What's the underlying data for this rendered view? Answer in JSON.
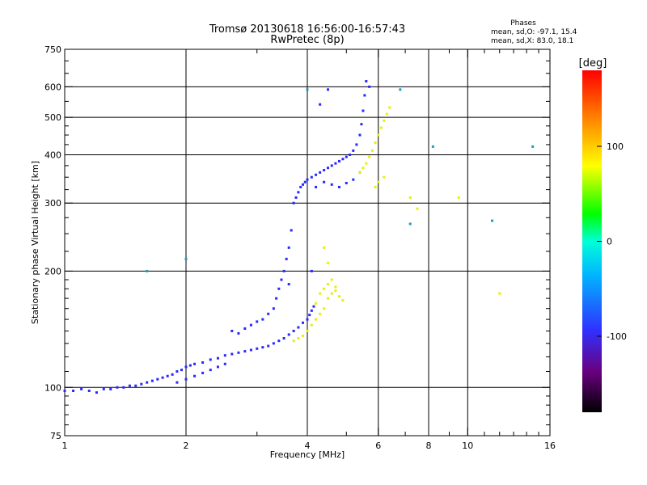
{
  "chart_data": {
    "type": "scatter",
    "title": "Tromsø 20130618 16:56:00-16:57:43",
    "subtitle": "RwPretec (8p)",
    "xlabel": "Frequency [MHz]",
    "ylabel": "Stationary phase Virtual Height [km]",
    "xscale": "log",
    "yscale": "log",
    "xlim": [
      1,
      16
    ],
    "ylim": [
      75,
      750
    ],
    "x_ticks": [
      1,
      2,
      4,
      6,
      8,
      10,
      16
    ],
    "y_ticks": [
      75,
      100,
      200,
      300,
      400,
      500,
      600,
      750
    ],
    "grid": true,
    "legend": {
      "title": "Phases",
      "lines": [
        "mean, sd,O: -97.1, 15.4",
        "mean, sd,X:  83.0, 18.1"
      ],
      "placement": "top-right"
    },
    "colorbar": {
      "label": "[deg]",
      "range": [
        -180,
        180
      ],
      "ticks": [
        100,
        0,
        -100
      ],
      "colormap": "rainbow"
    },
    "series": [
      {
        "mode": "O",
        "color": "#2828ff",
        "points": [
          [
            1.0,
            98
          ],
          [
            1.05,
            98
          ],
          [
            1.1,
            99
          ],
          [
            1.15,
            98
          ],
          [
            1.2,
            97
          ],
          [
            1.25,
            99
          ],
          [
            1.3,
            99
          ],
          [
            1.35,
            100
          ],
          [
            1.4,
            100
          ],
          [
            1.45,
            101
          ],
          [
            1.5,
            101
          ],
          [
            1.55,
            102
          ],
          [
            1.6,
            103
          ],
          [
            1.65,
            104
          ],
          [
            1.7,
            105
          ],
          [
            1.75,
            106
          ],
          [
            1.8,
            107
          ],
          [
            1.85,
            108
          ],
          [
            1.9,
            110
          ],
          [
            1.95,
            111
          ],
          [
            2.0,
            113
          ],
          [
            2.05,
            114
          ],
          [
            2.1,
            115
          ],
          [
            2.2,
            116
          ],
          [
            2.3,
            118
          ],
          [
            2.4,
            119
          ],
          [
            2.5,
            121
          ],
          [
            2.6,
            122
          ],
          [
            2.7,
            123
          ],
          [
            2.8,
            124
          ],
          [
            2.9,
            125
          ],
          [
            3.0,
            126
          ],
          [
            3.1,
            127
          ],
          [
            3.2,
            128
          ],
          [
            3.3,
            130
          ],
          [
            3.4,
            132
          ],
          [
            3.5,
            134
          ],
          [
            3.6,
            137
          ],
          [
            3.7,
            140
          ],
          [
            3.8,
            143
          ],
          [
            3.9,
            147
          ],
          [
            4.0,
            150
          ],
          [
            4.05,
            154
          ],
          [
            4.1,
            158
          ],
          [
            4.15,
            162
          ],
          [
            1.9,
            103
          ],
          [
            2.0,
            105
          ],
          [
            2.1,
            107
          ],
          [
            2.2,
            109
          ],
          [
            2.3,
            111
          ],
          [
            2.4,
            113
          ],
          [
            2.5,
            115
          ],
          [
            2.6,
            140
          ],
          [
            2.7,
            138
          ],
          [
            2.8,
            142
          ],
          [
            2.9,
            145
          ],
          [
            3.0,
            148
          ],
          [
            3.1,
            150
          ],
          [
            3.2,
            155
          ],
          [
            3.3,
            160
          ],
          [
            3.35,
            170
          ],
          [
            3.4,
            180
          ],
          [
            3.45,
            190
          ],
          [
            3.5,
            200
          ],
          [
            3.55,
            215
          ],
          [
            3.6,
            230
          ],
          [
            3.65,
            255
          ],
          [
            3.7,
            300
          ],
          [
            3.75,
            310
          ],
          [
            3.8,
            320
          ],
          [
            3.85,
            330
          ],
          [
            3.9,
            335
          ],
          [
            3.95,
            340
          ],
          [
            4.0,
            345
          ],
          [
            4.1,
            350
          ],
          [
            4.2,
            355
          ],
          [
            4.3,
            360
          ],
          [
            4.4,
            365
          ],
          [
            4.5,
            370
          ],
          [
            4.6,
            375
          ],
          [
            4.7,
            380
          ],
          [
            4.8,
            385
          ],
          [
            4.9,
            390
          ],
          [
            5.0,
            395
          ],
          [
            5.1,
            400
          ],
          [
            5.2,
            410
          ],
          [
            5.3,
            425
          ],
          [
            5.4,
            450
          ],
          [
            5.45,
            480
          ],
          [
            5.5,
            520
          ],
          [
            5.55,
            570
          ],
          [
            5.6,
            620
          ],
          [
            4.2,
            330
          ],
          [
            4.4,
            340
          ],
          [
            4.6,
            335
          ],
          [
            4.8,
            330
          ],
          [
            5.0,
            338
          ],
          [
            5.2,
            345
          ],
          [
            5.4,
            360
          ],
          [
            4.3,
            540
          ],
          [
            4.5,
            590
          ],
          [
            5.7,
            600
          ],
          [
            4.1,
            200
          ],
          [
            3.6,
            185
          ]
        ]
      },
      {
        "mode": "X",
        "color": "#e6f00a",
        "points": [
          [
            3.7,
            132
          ],
          [
            3.8,
            134
          ],
          [
            3.9,
            136
          ],
          [
            4.0,
            140
          ],
          [
            4.1,
            145
          ],
          [
            4.2,
            150
          ],
          [
            4.3,
            155
          ],
          [
            4.4,
            160
          ],
          [
            4.5,
            170
          ],
          [
            4.6,
            175
          ],
          [
            4.7,
            178
          ],
          [
            4.8,
            172
          ],
          [
            4.9,
            168
          ],
          [
            4.4,
            180
          ],
          [
            4.5,
            185
          ],
          [
            4.6,
            190
          ],
          [
            4.7,
            182
          ],
          [
            4.3,
            175
          ],
          [
            4.2,
            165
          ],
          [
            4.4,
            230
          ],
          [
            4.5,
            210
          ],
          [
            5.4,
            360
          ],
          [
            5.5,
            370
          ],
          [
            5.6,
            380
          ],
          [
            5.7,
            395
          ],
          [
            5.8,
            410
          ],
          [
            5.9,
            430
          ],
          [
            6.0,
            450
          ],
          [
            6.1,
            470
          ],
          [
            6.2,
            490
          ],
          [
            6.3,
            510
          ],
          [
            6.4,
            530
          ],
          [
            5.9,
            330
          ],
          [
            6.0,
            340
          ],
          [
            6.2,
            350
          ],
          [
            7.2,
            310
          ],
          [
            7.5,
            290
          ],
          [
            12.0,
            175
          ],
          [
            9.5,
            310
          ]
        ]
      },
      {
        "mode": "other",
        "color": "#1e9bbe",
        "points": [
          [
            8.2,
            420
          ],
          [
            14.5,
            420
          ],
          [
            11.5,
            270
          ],
          [
            1.6,
            200
          ],
          [
            2.0,
            215
          ],
          [
            7.2,
            265
          ],
          [
            6.8,
            590
          ],
          [
            4.0,
            590
          ]
        ]
      }
    ]
  }
}
